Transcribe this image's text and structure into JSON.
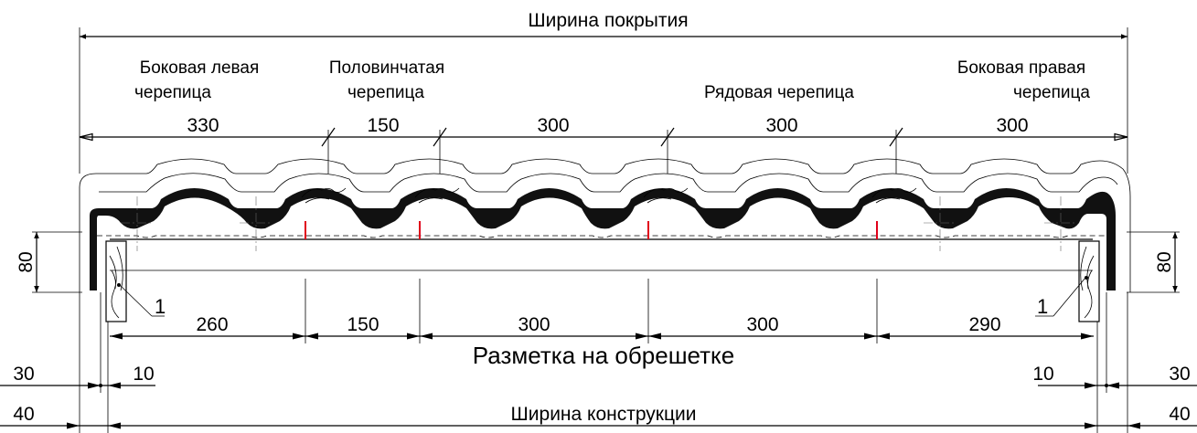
{
  "title": "Ширина покрытия",
  "tile_labels": {
    "left_edge": [
      "Боковая левая",
      "черепица"
    ],
    "half": [
      "Половинчатая",
      "черепица"
    ],
    "row": "Рядовая черепица",
    "right_edge": [
      "Боковая правая",
      "черепица"
    ]
  },
  "top_dimensions": [
    "330",
    "150",
    "300",
    "300",
    "300"
  ],
  "height_dimension": "80",
  "batten_number": "1",
  "bottom_dimensions": [
    "260",
    "150",
    "300",
    "300",
    "290"
  ],
  "batten_marking_label": "Разметка на обрешетке",
  "offsets": {
    "left_outer": "30",
    "left_inner": "10",
    "right_inner": "10",
    "right_outer": "30",
    "left_total": "40",
    "right_total": "40"
  },
  "construction_width": "Ширина конструкции",
  "colors": {
    "marker": "#e0001a",
    "ink": "#000000",
    "tile_fill": "#111111"
  }
}
